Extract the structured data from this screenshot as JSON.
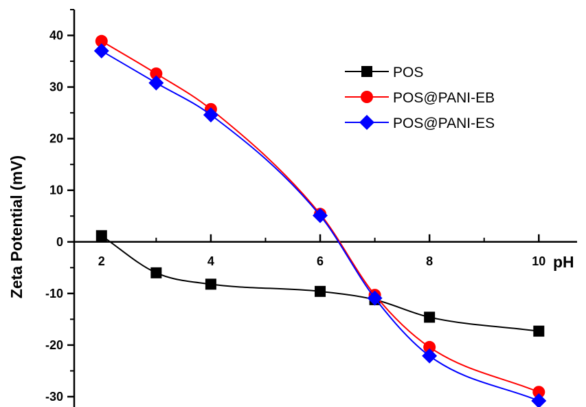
{
  "chart_data": {
    "type": "line",
    "xlabel": "pH",
    "ylabel": "Zeta Potential (mV)",
    "xlim": [
      1.5,
      10.7
    ],
    "ylim": [
      -32,
      45
    ],
    "x_ticks": [
      2,
      4,
      6,
      8,
      10
    ],
    "y_ticks": [
      -30,
      -20,
      -10,
      0,
      10,
      20,
      30,
      40
    ],
    "legend_position": "top-right",
    "series": [
      {
        "name": "POS",
        "color": "#000000",
        "marker": "square",
        "x": [
          2,
          3,
          4,
          6,
          7,
          8,
          10
        ],
        "y": [
          1.2,
          -6.0,
          -8.2,
          -9.6,
          -11.2,
          -14.6,
          -17.3
        ]
      },
      {
        "name": "POS@PANI-EB",
        "color": "#ff0000",
        "marker": "circle",
        "x": [
          2,
          3,
          4,
          6,
          7,
          8,
          10
        ],
        "y": [
          38.9,
          32.6,
          25.7,
          5.4,
          -10.3,
          -20.4,
          -29.1
        ]
      },
      {
        "name": "POS@PANI-ES",
        "color": "#0000ff",
        "marker": "diamond",
        "x": [
          2,
          3,
          4,
          6,
          7,
          8,
          10
        ],
        "y": [
          37.0,
          30.8,
          24.6,
          5.1,
          -10.9,
          -22.1,
          -30.8
        ]
      }
    ]
  }
}
